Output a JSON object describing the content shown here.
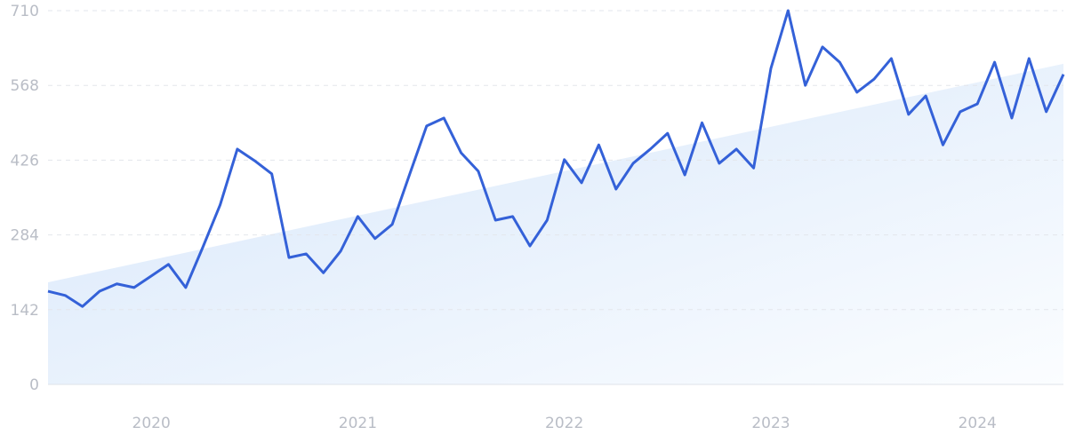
{
  "chart_data": {
    "type": "line",
    "categories": [
      null,
      null,
      null,
      null,
      null,
      null,
      "2020",
      null,
      null,
      null,
      null,
      null,
      null,
      null,
      null,
      null,
      null,
      null,
      "2021",
      null,
      null,
      null,
      null,
      null,
      null,
      null,
      null,
      null,
      null,
      null,
      "2022",
      null,
      null,
      null,
      null,
      null,
      null,
      null,
      null,
      null,
      null,
      null,
      "2023",
      null,
      null,
      null,
      null,
      null,
      null,
      null,
      null,
      null,
      null,
      null,
      "2024",
      null,
      null,
      null,
      null,
      null
    ],
    "series": [
      {
        "color": "#3461d8",
        "values": [
          177,
          169,
          148,
          177,
          191,
          184,
          206,
          228,
          184,
          261,
          341,
          447,
          425,
          400,
          241,
          248,
          212,
          253,
          319,
          277,
          304,
          398,
          491,
          506,
          440,
          405,
          312,
          319,
          263,
          312,
          427,
          383,
          455,
          371,
          420,
          447,
          477,
          398,
          497,
          420,
          447,
          411,
          600,
          710,
          568,
          641,
          612,
          555,
          580,
          619,
          513,
          548,
          455,
          518,
          533,
          612,
          506,
          619,
          518,
          589
        ]
      }
    ],
    "trend": [
      194,
      609
    ],
    "ylim": [
      0,
      710
    ],
    "yticks": [
      0,
      142,
      284,
      426,
      568,
      710
    ],
    "grid": true
  }
}
